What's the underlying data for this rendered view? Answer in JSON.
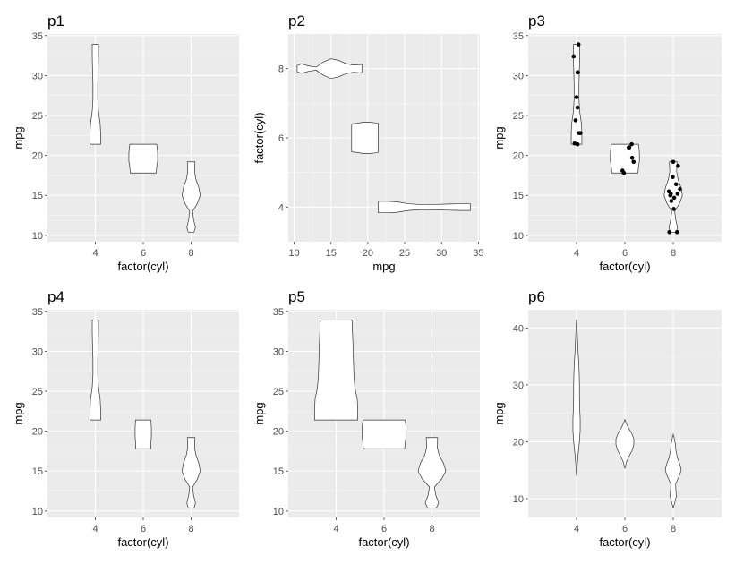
{
  "chart_data": [
    {
      "id": "p1",
      "type": "violin",
      "title": "p1",
      "xlabel": "factor(cyl)",
      "ylabel": "mpg",
      "orientation": "vertical",
      "categories": [
        "4",
        "6",
        "8"
      ],
      "ylim": [
        9.2,
        35.2
      ],
      "yticks": [
        10,
        15,
        20,
        25,
        30,
        35
      ],
      "scale": "area",
      "trim": true,
      "grid": true,
      "series": [
        {
          "category": "4",
          "min": 21.4,
          "max": 33.9,
          "profile": [
            [
              21.4,
              0.22
            ],
            [
              22.8,
              0.22
            ],
            [
              24,
              0.2
            ],
            [
              25.5,
              0.13
            ],
            [
              27,
              0.1
            ],
            [
              29,
              0.1
            ],
            [
              31,
              0.12
            ],
            [
              32.5,
              0.13
            ],
            [
              33.9,
              0.13
            ]
          ]
        },
        {
          "category": "6",
          "min": 17.8,
          "max": 21.4,
          "profile": [
            [
              17.8,
              0.54
            ],
            [
              18.5,
              0.56
            ],
            [
              19.3,
              0.6
            ],
            [
              20.3,
              0.6
            ],
            [
              21.0,
              0.58
            ],
            [
              21.4,
              0.56
            ]
          ]
        },
        {
          "category": "8",
          "min": 10.4,
          "max": 19.2,
          "profile": [
            [
              10.4,
              0.12
            ],
            [
              11,
              0.18
            ],
            [
              12,
              0.1
            ],
            [
              13,
              0.06
            ],
            [
              14,
              0.26
            ],
            [
              15,
              0.38
            ],
            [
              16,
              0.32
            ],
            [
              17,
              0.2
            ],
            [
              18,
              0.14
            ],
            [
              19.2,
              0.16
            ]
          ]
        }
      ]
    },
    {
      "id": "p2",
      "type": "violin",
      "title": "p2",
      "xlabel": "mpg",
      "ylabel": "factor(cyl)",
      "orientation": "horizontal",
      "categories": [
        "4",
        "6",
        "8"
      ],
      "xlim": [
        9.2,
        35.2
      ],
      "xticks": [
        10,
        15,
        20,
        25,
        30,
        35
      ],
      "ylim": [
        3.0,
        9.0
      ],
      "yticks": [
        4,
        6,
        8
      ],
      "scale": "area",
      "trim": true,
      "grid": true,
      "series": [
        {
          "category": "4",
          "min": 21.4,
          "max": 33.9,
          "profile": [
            [
              21.4,
              0.22
            ],
            [
              22.8,
              0.22
            ],
            [
              24,
              0.2
            ],
            [
              25.5,
              0.13
            ],
            [
              27,
              0.1
            ],
            [
              29,
              0.1
            ],
            [
              31,
              0.12
            ],
            [
              32.5,
              0.13
            ],
            [
              33.9,
              0.13
            ]
          ]
        },
        {
          "category": "6",
          "min": 17.8,
          "max": 21.4,
          "profile": [
            [
              17.8,
              0.54
            ],
            [
              18.5,
              0.56
            ],
            [
              19.3,
              0.6
            ],
            [
              20.3,
              0.6
            ],
            [
              21.0,
              0.58
            ],
            [
              21.4,
              0.56
            ]
          ]
        },
        {
          "category": "8",
          "min": 10.4,
          "max": 19.2,
          "profile": [
            [
              10.4,
              0.12
            ],
            [
              11,
              0.18
            ],
            [
              12,
              0.1
            ],
            [
              13,
              0.06
            ],
            [
              14,
              0.26
            ],
            [
              15,
              0.38
            ],
            [
              16,
              0.32
            ],
            [
              17,
              0.2
            ],
            [
              18,
              0.14
            ],
            [
              19.2,
              0.16
            ]
          ]
        }
      ]
    },
    {
      "id": "p3",
      "type": "violin",
      "title": "p3",
      "xlabel": "factor(cyl)",
      "ylabel": "mpg",
      "orientation": "vertical",
      "categories": [
        "4",
        "6",
        "8"
      ],
      "ylim": [
        9.2,
        35.2
      ],
      "yticks": [
        10,
        15,
        20,
        25,
        30,
        35
      ],
      "scale": "area",
      "trim": true,
      "grid": true,
      "series": [
        {
          "category": "4",
          "min": 21.4,
          "max": 33.9,
          "profile": [
            [
              21.4,
              0.22
            ],
            [
              22.8,
              0.22
            ],
            [
              24,
              0.2
            ],
            [
              25.5,
              0.13
            ],
            [
              27,
              0.1
            ],
            [
              29,
              0.1
            ],
            [
              31,
              0.12
            ],
            [
              32.5,
              0.13
            ],
            [
              33.9,
              0.13
            ]
          ]
        },
        {
          "category": "6",
          "min": 17.8,
          "max": 21.4,
          "profile": [
            [
              17.8,
              0.54
            ],
            [
              18.5,
              0.56
            ],
            [
              19.3,
              0.6
            ],
            [
              20.3,
              0.6
            ],
            [
              21.0,
              0.58
            ],
            [
              21.4,
              0.56
            ]
          ]
        },
        {
          "category": "8",
          "min": 10.4,
          "max": 19.2,
          "profile": [
            [
              10.4,
              0.12
            ],
            [
              11,
              0.18
            ],
            [
              12,
              0.1
            ],
            [
              13,
              0.06
            ],
            [
              14,
              0.26
            ],
            [
              15,
              0.38
            ],
            [
              16,
              0.32
            ],
            [
              17,
              0.2
            ],
            [
              18,
              0.14
            ],
            [
              19.2,
              0.16
            ]
          ]
        }
      ],
      "points": [
        {
          "x": "4",
          "y": 22.8,
          "jitter": 0.05
        },
        {
          "x": "4",
          "y": 24.4,
          "jitter": -0.02
        },
        {
          "x": "4",
          "y": 22.8,
          "jitter": 0.08
        },
        {
          "x": "4",
          "y": 32.4,
          "jitter": -0.06
        },
        {
          "x": "4",
          "y": 30.4,
          "jitter": 0.02
        },
        {
          "x": "4",
          "y": 33.9,
          "jitter": 0.04
        },
        {
          "x": "4",
          "y": 21.5,
          "jitter": -0.04
        },
        {
          "x": "4",
          "y": 27.3,
          "jitter": 0.0
        },
        {
          "x": "4",
          "y": 26.0,
          "jitter": 0.02
        },
        {
          "x": "4",
          "y": 30.4,
          "jitter": 0.03
        },
        {
          "x": "4",
          "y": 21.4,
          "jitter": 0.02
        },
        {
          "x": "6",
          "y": 21.0,
          "jitter": 0.08
        },
        {
          "x": "6",
          "y": 21.0,
          "jitter": 0.09
        },
        {
          "x": "6",
          "y": 21.4,
          "jitter": 0.14
        },
        {
          "x": "6",
          "y": 18.1,
          "jitter": -0.05
        },
        {
          "x": "6",
          "y": 19.2,
          "jitter": 0.18
        },
        {
          "x": "6",
          "y": 17.8,
          "jitter": -0.02
        },
        {
          "x": "6",
          "y": 19.7,
          "jitter": 0.15
        },
        {
          "x": "8",
          "y": 18.7,
          "jitter": 0.1
        },
        {
          "x": "8",
          "y": 14.3,
          "jitter": -0.04
        },
        {
          "x": "8",
          "y": 16.4,
          "jitter": 0.06
        },
        {
          "x": "8",
          "y": 17.3,
          "jitter": -0.01
        },
        {
          "x": "8",
          "y": 15.2,
          "jitter": 0.09
        },
        {
          "x": "8",
          "y": 10.4,
          "jitter": -0.08
        },
        {
          "x": "8",
          "y": 10.4,
          "jitter": 0.08
        },
        {
          "x": "8",
          "y": 14.7,
          "jitter": 0.02
        },
        {
          "x": "8",
          "y": 15.5,
          "jitter": -0.09
        },
        {
          "x": "8",
          "y": 15.2,
          "jitter": -0.05
        },
        {
          "x": "8",
          "y": 13.3,
          "jitter": 0.01
        },
        {
          "x": "8",
          "y": 19.2,
          "jitter": 0.0
        },
        {
          "x": "8",
          "y": 15.8,
          "jitter": 0.14
        },
        {
          "x": "8",
          "y": 15.0,
          "jitter": -0.06
        }
      ]
    },
    {
      "id": "p4",
      "type": "violin",
      "title": "p4",
      "xlabel": "factor(cyl)",
      "ylabel": "mpg",
      "orientation": "vertical",
      "categories": [
        "4",
        "6",
        "8"
      ],
      "ylim": [
        9.2,
        35.2
      ],
      "yticks": [
        10,
        15,
        20,
        25,
        30,
        35
      ],
      "scale": "area",
      "trim": true,
      "grid": true,
      "series": [
        {
          "category": "4",
          "min": 21.4,
          "max": 33.9,
          "profile": [
            [
              21.4,
              0.22
            ],
            [
              22.8,
              0.22
            ],
            [
              24,
              0.2
            ],
            [
              25.5,
              0.13
            ],
            [
              27,
              0.1
            ],
            [
              29,
              0.1
            ],
            [
              31,
              0.12
            ],
            [
              32.5,
              0.13
            ],
            [
              33.9,
              0.13
            ]
          ]
        },
        {
          "category": "6",
          "min": 17.8,
          "max": 21.4,
          "profile": [
            [
              17.8,
              0.31
            ],
            [
              18.5,
              0.32
            ],
            [
              19.3,
              0.34
            ],
            [
              20.3,
              0.34
            ],
            [
              21.0,
              0.33
            ],
            [
              21.4,
              0.32
            ]
          ]
        },
        {
          "category": "8",
          "min": 10.4,
          "max": 19.2,
          "profile": [
            [
              10.4,
              0.12
            ],
            [
              11,
              0.18
            ],
            [
              12,
              0.1
            ],
            [
              13,
              0.06
            ],
            [
              14,
              0.26
            ],
            [
              15,
              0.38
            ],
            [
              16,
              0.32
            ],
            [
              17,
              0.2
            ],
            [
              18,
              0.14
            ],
            [
              19.2,
              0.16
            ]
          ]
        }
      ]
    },
    {
      "id": "p5",
      "type": "violin",
      "title": "p5",
      "xlabel": "factor(cyl)",
      "ylabel": "mpg",
      "orientation": "vertical",
      "categories": [
        "4",
        "6",
        "8"
      ],
      "ylim": [
        9.2,
        35.2
      ],
      "yticks": [
        10,
        15,
        20,
        25,
        30,
        35
      ],
      "scale": "count",
      "trim": true,
      "grid": true,
      "series": [
        {
          "category": "4",
          "min": 21.4,
          "max": 33.9,
          "profile": [
            [
              21.4,
              0.9
            ],
            [
              22.8,
              0.9
            ],
            [
              24,
              0.88
            ],
            [
              25.5,
              0.78
            ],
            [
              27,
              0.74
            ],
            [
              29,
              0.72
            ],
            [
              31,
              0.7
            ],
            [
              32.5,
              0.68
            ],
            [
              33.9,
              0.66
            ]
          ]
        },
        {
          "category": "6",
          "min": 17.8,
          "max": 21.4,
          "profile": [
            [
              17.8,
              0.86
            ],
            [
              18.5,
              0.88
            ],
            [
              19.3,
              0.92
            ],
            [
              20.3,
              0.92
            ],
            [
              21.0,
              0.9
            ],
            [
              21.4,
              0.88
            ]
          ]
        },
        {
          "category": "8",
          "min": 10.4,
          "max": 19.2,
          "profile": [
            [
              10.4,
              0.18
            ],
            [
              11,
              0.28
            ],
            [
              12,
              0.16
            ],
            [
              13,
              0.1
            ],
            [
              14,
              0.4
            ],
            [
              15,
              0.58
            ],
            [
              16,
              0.48
            ],
            [
              17,
              0.3
            ],
            [
              18,
              0.22
            ],
            [
              19.2,
              0.24
            ]
          ]
        }
      ]
    },
    {
      "id": "p6",
      "type": "violin",
      "title": "p6",
      "xlabel": "factor(cyl)",
      "ylabel": "mpg",
      "orientation": "vertical",
      "categories": [
        "4",
        "6",
        "8"
      ],
      "ylim": [
        6.7,
        43.2
      ],
      "yticks": [
        10,
        20,
        30,
        40
      ],
      "scale": "area",
      "trim": false,
      "grid": true,
      "series": [
        {
          "category": "4",
          "min": 14.0,
          "max": 41.5,
          "profile": [
            [
              14.0,
              0
            ],
            [
              16,
              0.03
            ],
            [
              18,
              0.07
            ],
            [
              20,
              0.12
            ],
            [
              22,
              0.15
            ],
            [
              24,
              0.15
            ],
            [
              26,
              0.13
            ],
            [
              28,
              0.12
            ],
            [
              30,
              0.12
            ],
            [
              32,
              0.11
            ],
            [
              34,
              0.09
            ],
            [
              36,
              0.06
            ],
            [
              38,
              0.04
            ],
            [
              40,
              0.02
            ],
            [
              41.5,
              0
            ]
          ]
        },
        {
          "category": "6",
          "min": 15.3,
          "max": 23.9,
          "profile": [
            [
              15.3,
              0
            ],
            [
              16.5,
              0.07
            ],
            [
              17.5,
              0.18
            ],
            [
              18.5,
              0.3
            ],
            [
              19.5,
              0.37
            ],
            [
              20.5,
              0.37
            ],
            [
              21.5,
              0.28
            ],
            [
              22.5,
              0.14
            ],
            [
              23.3,
              0.05
            ],
            [
              23.9,
              0
            ]
          ]
        },
        {
          "category": "8",
          "min": 8.3,
          "max": 21.3,
          "profile": [
            [
              8.3,
              0
            ],
            [
              9.3,
              0.06
            ],
            [
              10.4,
              0.13
            ],
            [
              11.5,
              0.11
            ],
            [
              12.6,
              0.1
            ],
            [
              14,
              0.25
            ],
            [
              15,
              0.33
            ],
            [
              16,
              0.28
            ],
            [
              17.2,
              0.17
            ],
            [
              18.5,
              0.11
            ],
            [
              19.5,
              0.09
            ],
            [
              20.5,
              0.05
            ],
            [
              21.3,
              0
            ]
          ]
        }
      ]
    }
  ]
}
